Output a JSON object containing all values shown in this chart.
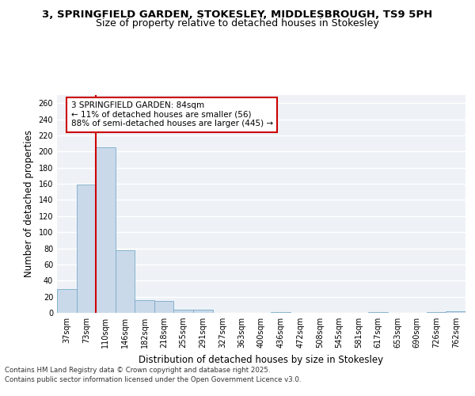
{
  "title_line1": "3, SPRINGFIELD GARDEN, STOKESLEY, MIDDLESBROUGH, TS9 5PH",
  "title_line2": "Size of property relative to detached houses in Stokesley",
  "xlabel": "Distribution of detached houses by size in Stokesley",
  "ylabel": "Number of detached properties",
  "categories": [
    "37sqm",
    "73sqm",
    "110sqm",
    "146sqm",
    "182sqm",
    "218sqm",
    "255sqm",
    "291sqm",
    "327sqm",
    "363sqm",
    "400sqm",
    "436sqm",
    "472sqm",
    "508sqm",
    "545sqm",
    "581sqm",
    "617sqm",
    "653sqm",
    "690sqm",
    "726sqm",
    "762sqm"
  ],
  "values": [
    29,
    159,
    205,
    78,
    16,
    15,
    4,
    4,
    0,
    0,
    0,
    1,
    0,
    0,
    0,
    0,
    1,
    0,
    0,
    1,
    2
  ],
  "bar_color": "#c9d9ea",
  "bar_edge_color": "#7aaac8",
  "vline_x_index": 1.5,
  "vline_color": "#cc0000",
  "annotation_text": "3 SPRINGFIELD GARDEN: 84sqm\n← 11% of detached houses are smaller (56)\n88% of semi-detached houses are larger (445) →",
  "annotation_box_color": "#ffffff",
  "annotation_box_edge": "#cc0000",
  "ylim": [
    0,
    270
  ],
  "yticks": [
    0,
    20,
    40,
    60,
    80,
    100,
    120,
    140,
    160,
    180,
    200,
    220,
    240,
    260
  ],
  "bg_color": "#eef2f7",
  "grid_color": "#ffffff",
  "footer_line1": "Contains HM Land Registry data © Crown copyright and database right 2025.",
  "footer_line2": "Contains public sector information licensed under the Open Government Licence v3.0.",
  "title_fontsize": 9.5,
  "subtitle_fontsize": 9,
  "axis_label_fontsize": 8.5,
  "tick_fontsize": 7,
  "annotation_fontsize": 7.5,
  "footer_fontsize": 6.2
}
